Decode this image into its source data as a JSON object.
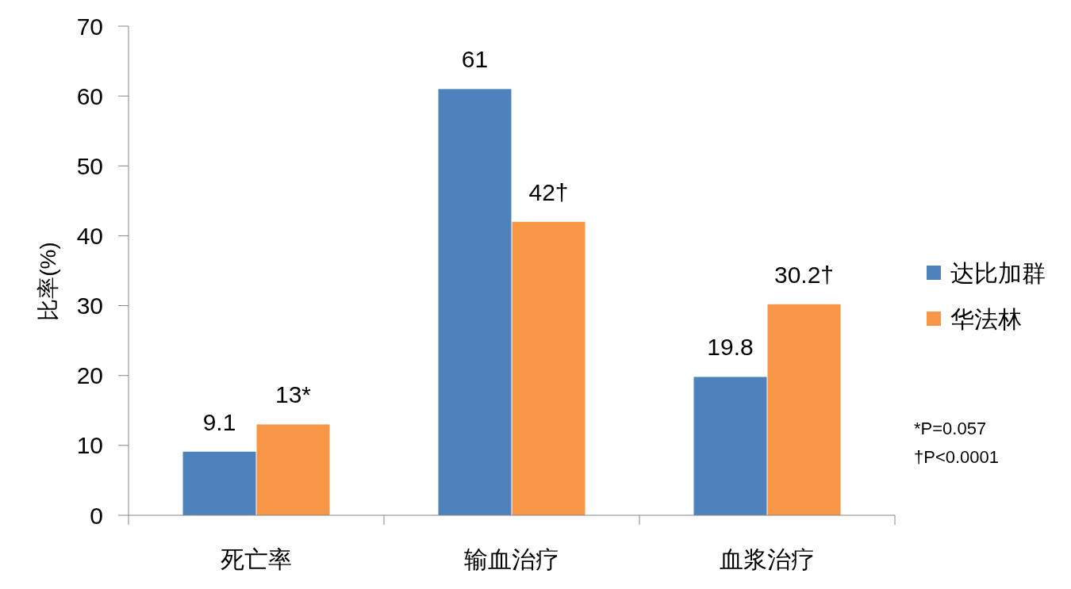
{
  "chart_data": {
    "type": "bar",
    "ylabel": "比率(%)",
    "categories": [
      "死亡率",
      "输血治疗",
      "血浆治疗"
    ],
    "series": [
      {
        "name": "达比加群",
        "color": "#4f81bd",
        "values": [
          9.1,
          61,
          19.8
        ],
        "value_labels": [
          "9.1",
          "61",
          "19.8"
        ]
      },
      {
        "name": "华法林",
        "color": "#f79646",
        "values": [
          13,
          42,
          30.2
        ],
        "value_labels": [
          "13*",
          "42†",
          "30.2†"
        ]
      }
    ],
    "ylim": [
      0,
      70
    ],
    "yticks": [
      0,
      10,
      20,
      30,
      40,
      50,
      60,
      70
    ],
    "grid": false,
    "legend": "right",
    "annotations": [
      "*P=0.057",
      "†P<0.0001"
    ]
  }
}
